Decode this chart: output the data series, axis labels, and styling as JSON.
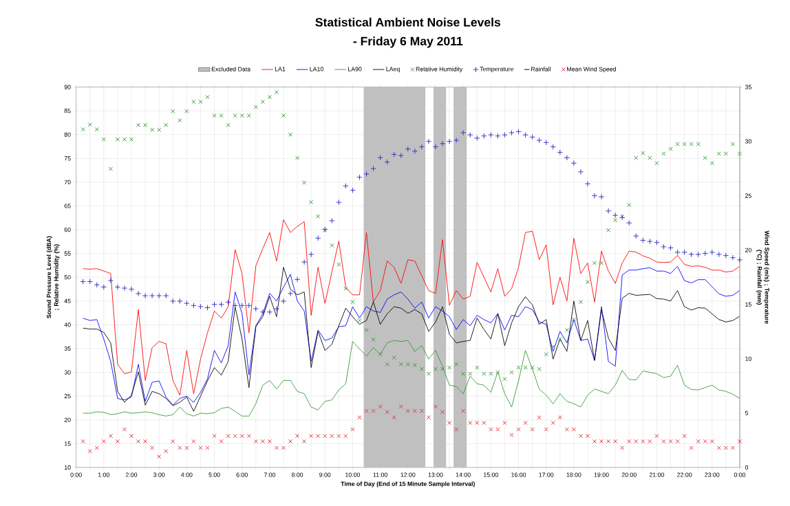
{
  "chart_data": {
    "type": "line",
    "title": "Statistical Ambient Noise Levels",
    "subtitle": "- Friday 6 May 2011",
    "xlabel": "Time of Day (End of 15 Minute Sample Interval)",
    "ylabel": "Sound Pressure Level (dBA) ; Relative Humidity (%)",
    "y2label": "Wind Speed (m/s) ; Temperature (°C) ; Rainfall (mm)",
    "x": [
      0.25,
      0.5,
      0.75,
      1.0,
      1.25,
      1.5,
      1.75,
      2.0,
      2.25,
      2.5,
      2.75,
      3.0,
      3.25,
      3.5,
      3.75,
      4.0,
      4.25,
      4.5,
      4.75,
      5.0,
      5.25,
      5.5,
      5.75,
      6.0,
      6.25,
      6.5,
      6.75,
      7.0,
      7.25,
      7.5,
      7.75,
      8.0,
      8.25,
      8.5,
      8.75,
      9.0,
      9.25,
      9.5,
      9.75,
      10.0,
      10.25,
      10.5,
      10.75,
      11.0,
      11.25,
      11.5,
      11.75,
      12.0,
      12.25,
      12.5,
      12.75,
      13.0,
      13.25,
      13.5,
      13.75,
      14.0,
      14.25,
      14.5,
      14.75,
      15.0,
      15.25,
      15.5,
      15.75,
      16.0,
      16.25,
      16.5,
      16.75,
      17.0,
      17.25,
      17.5,
      17.75,
      18.0,
      18.25,
      18.5,
      18.75,
      19.0,
      19.25,
      19.5,
      19.75,
      20.0,
      20.25,
      20.5,
      20.75,
      21.0,
      21.25,
      21.5,
      21.75,
      22.0,
      22.25,
      22.5,
      22.75,
      23.0,
      23.25,
      23.5,
      23.75,
      24.0
    ],
    "xlim": [
      0,
      24
    ],
    "xticks": [
      {
        "value": 0,
        "label": "0:00"
      },
      {
        "value": 1,
        "label": "1:00"
      },
      {
        "value": 2,
        "label": "2:00"
      },
      {
        "value": 3,
        "label": "3:00"
      },
      {
        "value": 4,
        "label": "4:00"
      },
      {
        "value": 5,
        "label": "5:00"
      },
      {
        "value": 6,
        "label": "6:00"
      },
      {
        "value": 7,
        "label": "7:00"
      },
      {
        "value": 8,
        "label": "8:00"
      },
      {
        "value": 9,
        "label": "9:00"
      },
      {
        "value": 10,
        "label": "10:00"
      },
      {
        "value": 11,
        "label": "11:00"
      },
      {
        "value": 12,
        "label": "12:00"
      },
      {
        "value": 13,
        "label": "13:00"
      },
      {
        "value": 14,
        "label": "14:00"
      },
      {
        "value": 15,
        "label": "15:00"
      },
      {
        "value": 16,
        "label": "16:00"
      },
      {
        "value": 17,
        "label": "17:00"
      },
      {
        "value": 18,
        "label": "18:00"
      },
      {
        "value": 19,
        "label": "19:00"
      },
      {
        "value": 20,
        "label": "20:00"
      },
      {
        "value": 21,
        "label": "21:00"
      },
      {
        "value": 22,
        "label": "22:00"
      },
      {
        "value": 23,
        "label": "23:00"
      },
      {
        "value": 24,
        "label": "0:00"
      }
    ],
    "ylim": [
      10,
      90
    ],
    "yticks": [
      10,
      15,
      20,
      25,
      30,
      35,
      40,
      45,
      50,
      55,
      60,
      65,
      70,
      75,
      80,
      85,
      90
    ],
    "y2lim": [
      0,
      35
    ],
    "y2ticks": [
      0,
      5,
      10,
      15,
      20,
      25,
      30,
      35
    ],
    "grid": true,
    "legend": "top",
    "bands": [
      {
        "axis": "x",
        "from": 10.4,
        "to": 12.63,
        "color": "#c0c0c0",
        "label": "Excluded Data"
      },
      {
        "axis": "x",
        "from": 12.92,
        "to": 13.38,
        "color": "#c0c0c0"
      },
      {
        "axis": "x",
        "from": 13.65,
        "to": 14.13,
        "color": "#c0c0c0"
      }
    ],
    "series": [
      {
        "name": "LA1",
        "marker": "none",
        "color": "#ff0000",
        "values": [
          51.8,
          51.7,
          51.8,
          51.3,
          50.8,
          31.7,
          29.7,
          30.1,
          43.2,
          28.3,
          35.2,
          36.5,
          36,
          28.3,
          25.2,
          34.6,
          25.5,
          32.8,
          38.3,
          42.9,
          41.4,
          43.8,
          55.8,
          50.8,
          38.3,
          52.4,
          56,
          59.4,
          53.4,
          62.1,
          59.4,
          60.7,
          61.7,
          42,
          52.1,
          44.5,
          51.1,
          57.6,
          47.9,
          46.3,
          46.3,
          59.4,
          44.8,
          47.2,
          53.4,
          52.1,
          48.7,
          53.7,
          53.4,
          50.3,
          47.2,
          46.6,
          57.9,
          44.1,
          47.2,
          45.4,
          46,
          53.1,
          50,
          46.9,
          51.8,
          46,
          47.6,
          52.1,
          59.4,
          59.7,
          53.7,
          56.8,
          44.2,
          50,
          45,
          58.2,
          50.8,
          53,
          44.8,
          55.5,
          51.3,
          48.7,
          53,
          55.5,
          55.3,
          54.5,
          54,
          53.2,
          53.1,
          53.2,
          54.6,
          52.7,
          52.3,
          52.4,
          52.1,
          51.5,
          51.5,
          51.1,
          51.3,
          52.3
        ]
      },
      {
        "name": "LA10",
        "marker": "none",
        "color": "#0000ff",
        "values": [
          41.4,
          40.9,
          41.1,
          37,
          32.3,
          24.5,
          24.2,
          24.8,
          31.7,
          23.9,
          27.9,
          28.2,
          24.8,
          23.1,
          24.5,
          25,
          23.7,
          25.8,
          28.6,
          34.6,
          32,
          35.6,
          46.9,
          42.4,
          29.5,
          39.8,
          42.3,
          46.6,
          45,
          47.9,
          50.6,
          45,
          42.9,
          32.3,
          38.9,
          36.7,
          37.2,
          39.6,
          39.8,
          43.8,
          41.4,
          43.8,
          42.9,
          42.6,
          45.4,
          46.3,
          46.9,
          45.4,
          43.5,
          44.8,
          41.4,
          43.8,
          42.9,
          41.7,
          39,
          41.1,
          39.8,
          42,
          41.1,
          40.4,
          42.3,
          38.9,
          42,
          41.7,
          43.8,
          43.2,
          40.6,
          40.1,
          34.4,
          38.6,
          36.2,
          41.1,
          36.7,
          37,
          32.5,
          43.8,
          32.3,
          31.3,
          50.5,
          51.5,
          51.5,
          51.8,
          52,
          51.3,
          51.3,
          50.8,
          52.3,
          49.3,
          48.8,
          49.5,
          49.5,
          48,
          46.5,
          46,
          46.2,
          47.2
        ]
      },
      {
        "name": "LA90",
        "marker": "none",
        "color": "#339933",
        "values": [
          21.4,
          21.4,
          21.7,
          21.6,
          21.1,
          21.3,
          21.7,
          21.4,
          21.5,
          21.7,
          21.5,
          21.1,
          20.8,
          21.1,
          22.7,
          21.3,
          20.8,
          21.4,
          21.3,
          21.5,
          22.4,
          22.7,
          21.8,
          20.8,
          20.8,
          23.4,
          27.3,
          28.3,
          26.5,
          28.3,
          28.3,
          26,
          25.5,
          22.7,
          22.1,
          23.9,
          24.2,
          26.3,
          27.6,
          36.5,
          34.9,
          33.4,
          35.2,
          33.8,
          36.2,
          36.7,
          36.5,
          36.7,
          34.4,
          35.6,
          32.8,
          34.6,
          31.3,
          27.3,
          27,
          25.5,
          29.2,
          27.6,
          27.3,
          25.8,
          30.1,
          25.5,
          22.7,
          28.2,
          34.6,
          30.7,
          26.5,
          25.2,
          23.4,
          25.5,
          23.9,
          23.4,
          22.7,
          25.2,
          26.5,
          26,
          25.5,
          27.3,
          30.4,
          28.5,
          28.4,
          30.3,
          30,
          29.7,
          28.9,
          29.2,
          31.5,
          27.3,
          26.4,
          26.3,
          26.8,
          27.3,
          26.3,
          26,
          25.4,
          24.5
        ]
      },
      {
        "name": "LAeq",
        "marker": "none",
        "color": "#000000",
        "values": [
          39.3,
          39.1,
          39.1,
          38.4,
          36.2,
          26,
          23.7,
          25.2,
          30.1,
          23.1,
          26,
          25.5,
          24.5,
          23,
          23.7,
          24.8,
          21.8,
          25,
          28.2,
          31,
          29.4,
          32.3,
          43.8,
          37,
          26.8,
          39.6,
          41.7,
          46,
          41.7,
          52.1,
          47.5,
          46.3,
          46.9,
          31,
          38.6,
          34.6,
          35.9,
          39.8,
          43.5,
          41.7,
          40.1,
          40.9,
          44.8,
          40.1,
          42.3,
          43.8,
          43.5,
          42.4,
          43.2,
          42.3,
          38.6,
          40.6,
          43.8,
          38,
          36.2,
          36.5,
          36.7,
          41.4,
          39,
          37,
          42.4,
          35.6,
          40.4,
          43.8,
          45.9,
          44.2,
          40.1,
          41.1,
          32.8,
          37,
          34.4,
          45,
          36.7,
          40.9,
          32.5,
          43.2,
          37.2,
          34.6,
          45.6,
          46.6,
          46.2,
          46.3,
          46.4,
          45.5,
          45.4,
          45,
          47.2,
          43.8,
          43.1,
          43.6,
          43.5,
          42.3,
          41.1,
          40.6,
          40.9,
          41.8
        ]
      },
      {
        "name": "Relative Humidity",
        "type": "scatter",
        "marker": "cross",
        "color": "#339933",
        "values": [
          81.1,
          82.1,
          81.1,
          79,
          72.8,
          79,
          79,
          79,
          82,
          82,
          81,
          81,
          82,
          84.9,
          83,
          84.9,
          86.9,
          86.9,
          87.9,
          84,
          84,
          82,
          84,
          84,
          84,
          85.8,
          86.9,
          87.9,
          88.9,
          84,
          80,
          75.1,
          69.9,
          65.8,
          62.8,
          59.9,
          56.7,
          52.7,
          47.6,
          44.8,
          40.9,
          38.9,
          36.9,
          33.8,
          31.7,
          33.1,
          31.7,
          31.7,
          31.5,
          30.7,
          29.7,
          30.7,
          30.7,
          31,
          31.7,
          29.7,
          29.7,
          31,
          29.7,
          29.7,
          30,
          28.6,
          30,
          31,
          31,
          31,
          30.7,
          33.8,
          35.4,
          37,
          38.9,
          41.1,
          44.8,
          49,
          53,
          53,
          59.9,
          62,
          62.8,
          65.2,
          75.1,
          76.1,
          75.1,
          74,
          76,
          77,
          78,
          78,
          78,
          78,
          75.1,
          74,
          76,
          76,
          78,
          76
        ]
      },
      {
        "name": "Temperature",
        "type": "scatter",
        "marker": "plus",
        "axis": "y2",
        "color": "#3333cc",
        "values": [
          17.1,
          17.1,
          16.8,
          16.6,
          17.2,
          16.6,
          16.5,
          16.4,
          16,
          15.8,
          15.8,
          15.8,
          15.8,
          15.3,
          15.3,
          15.1,
          14.9,
          14.8,
          14.7,
          15,
          15,
          15.2,
          14.9,
          14.9,
          14.9,
          14.6,
          14.3,
          14.3,
          14.6,
          15.3,
          16,
          17.3,
          18.9,
          19.6,
          21.1,
          21.9,
          22.7,
          24.4,
          25.9,
          25.5,
          26.7,
          27,
          27.5,
          28.5,
          28.1,
          28.8,
          28.7,
          29.3,
          29.1,
          29.5,
          30,
          29.5,
          29.8,
          30,
          30.1,
          30.8,
          30.6,
          30.3,
          30.5,
          30.6,
          30.5,
          30.6,
          30.8,
          30.9,
          30.6,
          30.4,
          30.1,
          29.9,
          29.5,
          29,
          28.5,
          28,
          27.2,
          26.1,
          25,
          24.9,
          23.6,
          23.2,
          23,
          22.5,
          21.3,
          20.9,
          20.8,
          20.7,
          20.3,
          20.2,
          19.8,
          19.8,
          19.6,
          19.6,
          19.7,
          19.8,
          19.6,
          19.5,
          19.3,
          19.1
        ]
      },
      {
        "name": "Rainfall",
        "type": "scatter",
        "marker": "minus",
        "axis": "y2",
        "color": "#000000",
        "values": [
          null,
          null,
          null,
          null,
          null,
          null,
          null,
          null,
          null,
          null,
          null,
          null,
          null,
          null,
          null,
          null,
          null,
          null,
          null,
          null,
          null,
          null,
          null,
          null,
          null,
          null,
          null,
          null,
          null,
          null,
          null,
          null,
          null,
          null,
          null,
          null,
          null,
          null,
          null,
          null,
          null,
          null,
          null,
          null,
          null,
          null,
          null,
          null,
          null,
          null,
          null,
          null,
          null,
          null,
          null,
          null,
          null,
          null,
          null,
          null,
          null,
          null,
          null,
          null,
          null,
          null,
          null,
          null,
          null,
          null,
          null,
          null,
          null,
          null,
          null,
          null,
          null,
          null,
          null,
          null,
          null,
          null,
          null,
          null,
          null,
          null,
          null,
          null,
          null,
          null,
          null,
          null,
          null,
          null,
          null,
          null
        ]
      },
      {
        "name": "Mean Wind Speed",
        "type": "scatter",
        "marker": "cross",
        "axis": "y2",
        "color": "#e8303a",
        "values": [
          2.4,
          1.5,
          1.8,
          2.4,
          2.9,
          2.4,
          3.5,
          2.9,
          2.4,
          2.4,
          1.8,
          1,
          1.5,
          2.4,
          1.8,
          1.8,
          2.4,
          1.8,
          1.8,
          2.9,
          2.4,
          2.9,
          2.9,
          2.9,
          2.9,
          2.4,
          2.4,
          2.4,
          1.8,
          1.8,
          2.4,
          2.9,
          2.4,
          2.9,
          2.9,
          2.9,
          2.9,
          2.9,
          2.9,
          3.5,
          4.6,
          5.2,
          5.2,
          5.6,
          5.1,
          4.6,
          5.6,
          5.2,
          5.2,
          5.2,
          4.6,
          5.6,
          5.1,
          4.1,
          3.5,
          5.2,
          4.1,
          4.1,
          4.1,
          3.5,
          3.5,
          4.1,
          3,
          3.5,
          4.1,
          3.5,
          4.6,
          3.5,
          4.1,
          4.6,
          3.5,
          3.5,
          2.9,
          2.9,
          2.4,
          2.4,
          2.4,
          2.4,
          1.8,
          2.4,
          2.4,
          2.4,
          2.4,
          2.9,
          2.4,
          2.4,
          2.4,
          2.9,
          1.8,
          2.4,
          2.4,
          2.4,
          1.8,
          1.8,
          1.8,
          2.4
        ]
      }
    ]
  }
}
